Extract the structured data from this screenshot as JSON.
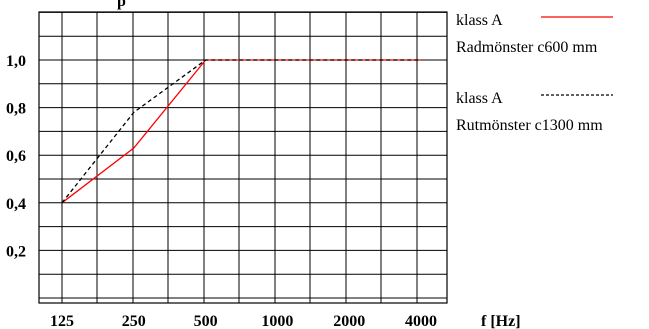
{
  "chart_data": {
    "type": "line",
    "title_fragment": "p",
    "xlabel": "f [Hz]",
    "x_categories": [
      "125",
      "250",
      "500",
      "1000",
      "2000",
      "4000"
    ],
    "ylim": [
      0.0,
      1.2
    ],
    "y_ticks": [
      0.2,
      0.4,
      0.6,
      0.8,
      1.0
    ],
    "y_tick_labels": [
      "0,2",
      "0,4",
      "0,6",
      "0,8",
      "1,0"
    ],
    "grid": true,
    "legend_position": "right",
    "series": [
      {
        "name": "klass A Radmönster c600 mm",
        "legend_line1": "klass A",
        "legend_line2": "Radmönster c600 mm",
        "color": "#ff0000",
        "dash": "solid",
        "values": [
          0.4,
          0.63,
          1.0,
          1.0,
          1.0,
          1.0
        ]
      },
      {
        "name": "klass A Rutmönster c1300 mm",
        "legend_line1": "klass A",
        "legend_line2": "Rutmönster c1300 mm",
        "color": "#000000",
        "dash": "dashed",
        "values": [
          0.4,
          0.78,
          1.0,
          1.0,
          1.0,
          1.0
        ]
      }
    ]
  }
}
